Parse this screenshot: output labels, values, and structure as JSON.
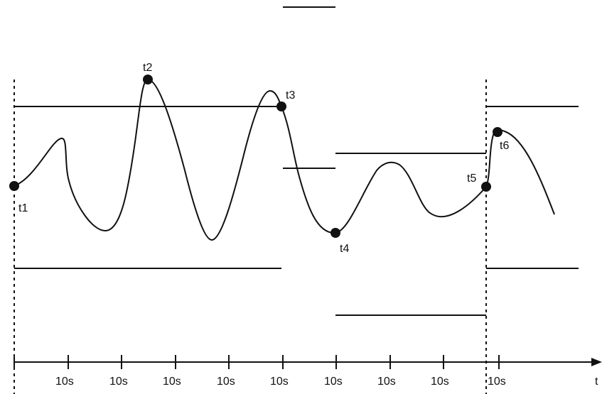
{
  "points": [
    {
      "id": "t1",
      "label": "t1"
    },
    {
      "id": "t2",
      "label": "t2"
    },
    {
      "id": "t3",
      "label": "t3"
    },
    {
      "id": "t4",
      "label": "t4"
    },
    {
      "id": "t5",
      "label": "t5"
    },
    {
      "id": "t6",
      "label": "t6"
    }
  ],
  "axis": {
    "label": "t",
    "ticks": [
      "10s",
      "10s",
      "10s",
      "10s",
      "10s",
      "10s",
      "10s",
      "10s",
      "10s"
    ]
  },
  "colors": {
    "ink": "#111111",
    "background": "#ffffff"
  }
}
